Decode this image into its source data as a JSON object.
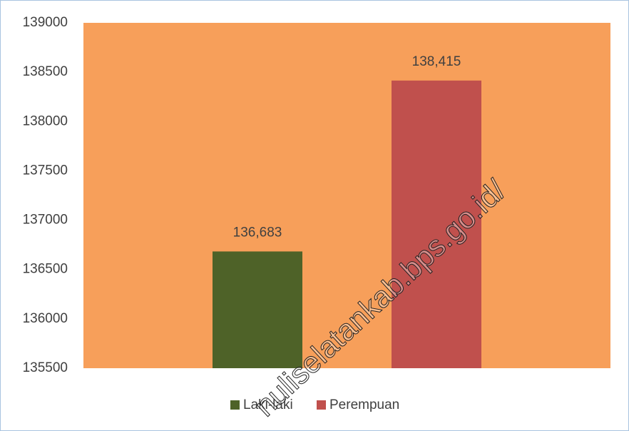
{
  "chart_data": {
    "type": "bar",
    "categories": [
      null
    ],
    "series": [
      {
        "name": "Laki-laki",
        "color": "#4e6228",
        "values": [
          136683
        ],
        "value_labels": [
          "136,683"
        ]
      },
      {
        "name": "Perempuan",
        "color": "#c0504d",
        "values": [
          138415
        ],
        "value_labels": [
          "138,415"
        ]
      }
    ],
    "ylim": [
      135500,
      139000
    ],
    "yticks": [
      135500,
      136000,
      136500,
      137000,
      137500,
      138000,
      138500,
      139000
    ],
    "plot_background": "#f79f5a",
    "legend": "bottom"
  },
  "watermark": "nuliselatankab.bps.go.id/"
}
